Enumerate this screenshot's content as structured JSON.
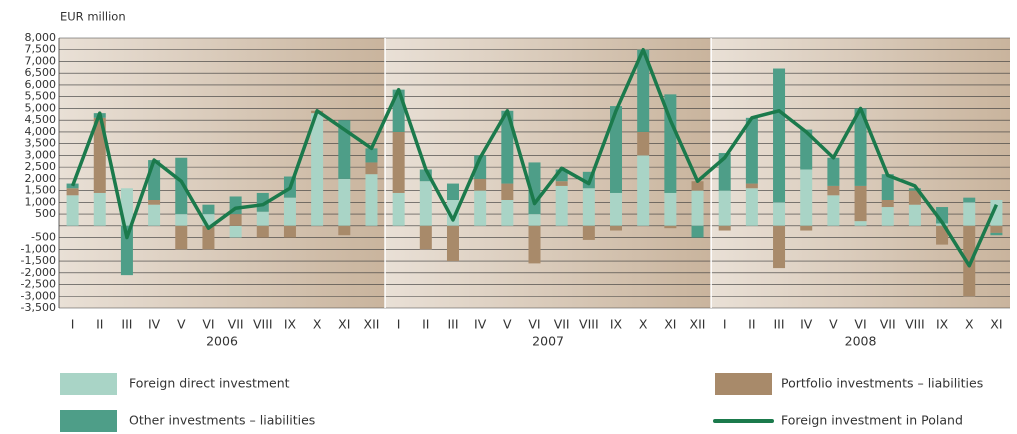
{
  "chart_data": {
    "type": "bar_line",
    "y_axis_label": "EUR million",
    "category_groups": [
      {
        "name": "2006",
        "categories": [
          "I",
          "II",
          "III",
          "IV",
          "V",
          "VI",
          "VII",
          "VIII",
          "IX",
          "X",
          "XI",
          "XII"
        ]
      },
      {
        "name": "2007",
        "categories": [
          "I",
          "II",
          "III",
          "IV",
          "V",
          "VI",
          "VII",
          "VIII",
          "IX",
          "X",
          "XI",
          "XII"
        ]
      },
      {
        "name": "2008",
        "categories": [
          "I",
          "II",
          "III",
          "IV",
          "V",
          "VI",
          "VII",
          "VIII",
          "IX",
          "X",
          "XI"
        ]
      }
    ],
    "series": [
      {
        "name": "Foreign direct investment",
        "kind": "bar",
        "color": "#a9d4c6",
        "values": [
          1300,
          1400,
          1600,
          900,
          500,
          500,
          -500,
          600,
          1200,
          4800,
          2000,
          2200,
          1400,
          1900,
          1100,
          1500,
          1100,
          500,
          1700,
          1600,
          1400,
          3000,
          1400,
          1500,
          1500,
          1600,
          1000,
          2400,
          1300,
          200,
          800,
          900,
          100,
          1000,
          1100
        ]
      },
      {
        "name": "Portfolio investments – liabilities",
        "kind": "bar",
        "color": "#a88a6a",
        "values": [
          300,
          3200,
          0,
          200,
          -1000,
          -1000,
          500,
          -500,
          -500,
          100,
          -400,
          500,
          2600,
          -1000,
          -1500,
          500,
          700,
          -1600,
          200,
          -600,
          -200,
          1000,
          -100,
          400,
          -200,
          200,
          -1800,
          -200,
          400,
          1500,
          300,
          600,
          -800,
          -3000,
          -300
        ]
      },
      {
        "name": "Other investments – liabilities",
        "kind": "bar",
        "color": "#4e9e88",
        "values": [
          200,
          200,
          -2100,
          1700,
          2400,
          400,
          750,
          800,
          900,
          0,
          2500,
          600,
          1800,
          500,
          700,
          1000,
          3100,
          2200,
          500,
          700,
          3700,
          3500,
          4200,
          -500,
          1600,
          2800,
          5700,
          1700,
          1200,
          3300,
          1100,
          100,
          700,
          200,
          -100
        ]
      },
      {
        "name": "Foreign investment in Poland",
        "kind": "line",
        "color": "#1b7a4c",
        "values": [
          1700,
          4800,
          -500,
          2800,
          1900,
          -100,
          750,
          900,
          1600,
          4900,
          4100,
          3300,
          5800,
          2400,
          250,
          2900,
          4900,
          950,
          2450,
          1800,
          4900,
          7500,
          4500,
          1900,
          2900,
          4600,
          4900,
          4000,
          2900,
          5000,
          2150,
          1700,
          150,
          -1700,
          900
        ]
      }
    ],
    "ylim": [
      -3500,
      8000
    ],
    "yticks": [
      {
        "value": 8000,
        "label": "8,000"
      },
      {
        "value": 7500,
        "label": "7,500"
      },
      {
        "value": 7000,
        "label": "7,000"
      },
      {
        "value": 6500,
        "label": "6,500"
      },
      {
        "value": 6000,
        "label": "6,000"
      },
      {
        "value": 5500,
        "label": "5,500"
      },
      {
        "value": 5000,
        "label": "5,000"
      },
      {
        "value": 4500,
        "label": "4,500"
      },
      {
        "value": 4000,
        "label": "4,000"
      },
      {
        "value": 3500,
        "label": "3,500"
      },
      {
        "value": 3000,
        "label": "3,000"
      },
      {
        "value": 2500,
        "label": "2,500"
      },
      {
        "value": 2000,
        "label": "2,000"
      },
      {
        "value": 1500,
        "label": "1,500"
      },
      {
        "value": 1000,
        "label": "1,000"
      },
      500,
      -500,
      {
        "value": -1000,
        "label": "-1,000"
      },
      {
        "value": -1500,
        "label": "-1,500"
      },
      {
        "value": -2000,
        "label": "-2,000"
      },
      {
        "value": -2500,
        "label": "-2,500"
      },
      {
        "value": -3000,
        "label": "-3,000"
      },
      {
        "value": -3500,
        "label": "-3,500"
      }
    ],
    "grid": true
  }
}
